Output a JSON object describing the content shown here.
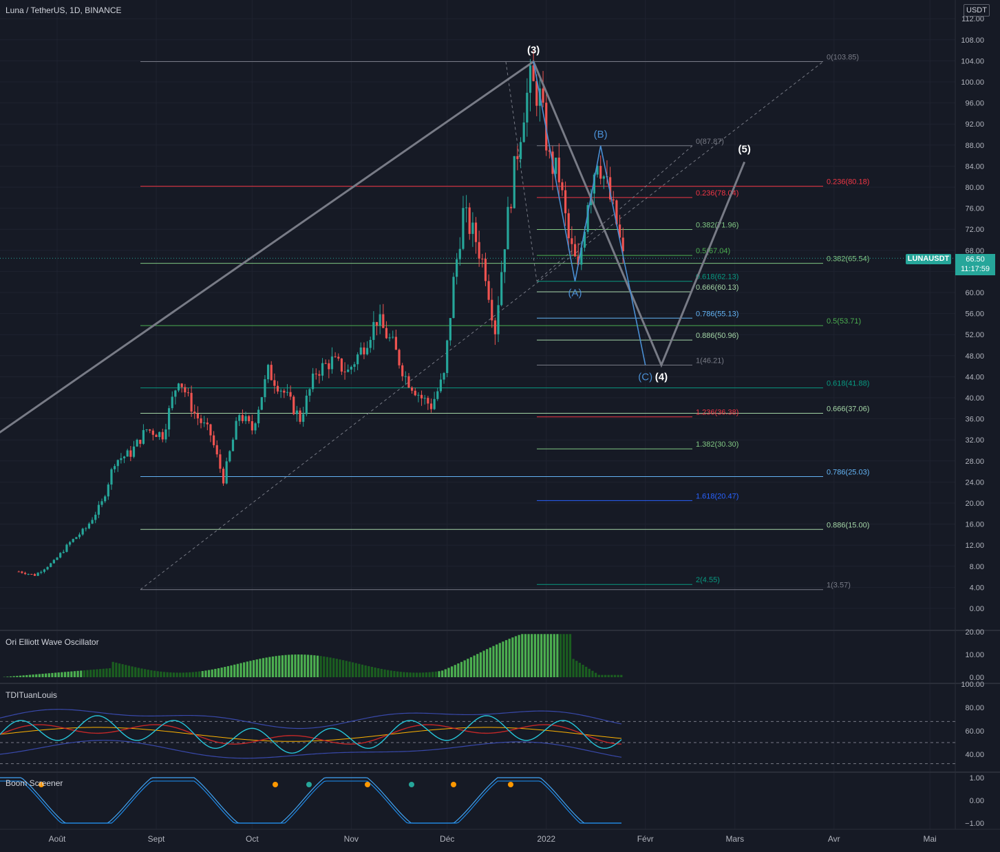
{
  "header": {
    "title": "Luna / TetherUS, 1D, BINANCE",
    "unit": "USDT"
  },
  "current_price": {
    "symbol": "LUNAUSDT",
    "price": "66.50",
    "countdown": "11:17:59"
  },
  "colors": {
    "up": "#26a69a",
    "down": "#ef5350",
    "background": "#161a25",
    "grid": "#1f2330",
    "wave": "#787b86",
    "abc": "#4a8fd4"
  },
  "chart_data": {
    "type": "line",
    "title": "Luna / TetherUS, 1D, BINANCE",
    "ylim": [
      -2,
      114
    ],
    "y_ticks": [
      "0.00",
      "4.00",
      "8.00",
      "12.00",
      "16.00",
      "20.00",
      "24.00",
      "28.00",
      "32.00",
      "36.00",
      "40.00",
      "44.00",
      "48.00",
      "52.00",
      "56.00",
      "60.00",
      "64.00",
      "68.00",
      "72.00",
      "76.00",
      "80.00",
      "84.00",
      "88.00",
      "92.00",
      "96.00",
      "100.00",
      "104.00",
      "108.00",
      "112.00"
    ],
    "x_ticks": [
      "Août",
      "Sept",
      "Oct",
      "Nov",
      "Déc",
      "2022",
      "Févr",
      "Mars",
      "Avr",
      "Mai"
    ],
    "price_series": {
      "name": "LUNAUSDT",
      "x": [
        "2021-07-20",
        "2021-07-25",
        "2021-07-31",
        "2021-08-05",
        "2021-08-10",
        "2021-08-15",
        "2021-08-19",
        "2021-08-24",
        "2021-08-29",
        "2021-09-03",
        "2021-09-08",
        "2021-09-13",
        "2021-09-18",
        "2021-09-22",
        "2021-09-27",
        "2021-10-01",
        "2021-10-06",
        "2021-10-11",
        "2021-10-16",
        "2021-10-21",
        "2021-10-26",
        "2021-10-31",
        "2021-11-05",
        "2021-11-09",
        "2021-11-14",
        "2021-11-18",
        "2021-11-23",
        "2021-11-26",
        "2021-11-30",
        "2021-12-03",
        "2021-12-06",
        "2021-12-10",
        "2021-12-13",
        "2021-12-16",
        "2021-12-19",
        "2021-12-22",
        "2021-12-25",
        "2021-12-27",
        "2021-12-30",
        "2022-01-02",
        "2022-01-05",
        "2022-01-08",
        "2022-01-11",
        "2022-01-14",
        "2022-01-17",
        "2022-01-20",
        "2022-01-23",
        "2022-01-25"
      ],
      "values": [
        7.0,
        6.3,
        8.9,
        12.5,
        15.2,
        20.0,
        28.0,
        29.5,
        34.0,
        33.0,
        44.0,
        37.0,
        33.0,
        24.5,
        37.0,
        34.0,
        45.0,
        41.0,
        36.0,
        45.0,
        47.0,
        45.0,
        50.0,
        55.0,
        50.0,
        44.0,
        40.0,
        38.5,
        44.0,
        62.0,
        75.0,
        70.0,
        64.0,
        53.0,
        70.0,
        83.0,
        95.0,
        100.0,
        97.0,
        85.0,
        82.0,
        70.0,
        64.0,
        78.0,
        86.0,
        80.0,
        73.0,
        66.5
      ]
    },
    "elliott_labels": [
      {
        "label": "(3)",
        "x": "2021-12-28",
        "y": 103.85
      },
      {
        "label": "(4)",
        "x": "2022-02-06",
        "y": 46.21
      },
      {
        "label": "(5)",
        "x": "2022-03-04",
        "y": 84.8
      },
      {
        "label": "(A)",
        "x": "2022-01-10",
        "y": 62.13
      },
      {
        "label": "(B)",
        "x": "2022-01-18",
        "y": 87.87
      },
      {
        "label": "(C)",
        "x": "2022-02-01",
        "y": 46.21
      }
    ],
    "elliott_path": [
      [
        "2021-06-30",
        27.5
      ],
      [
        "2021-12-28",
        103.85
      ],
      [
        "2022-02-06",
        46.21
      ],
      [
        "2022-03-04",
        84.8
      ]
    ],
    "abc_path": [
      [
        "2021-12-28",
        103.85
      ],
      [
        "2022-01-10",
        62.13
      ],
      [
        "2022-01-18",
        87.87
      ],
      [
        "2022-02-01",
        46.21
      ]
    ],
    "fib_retracement": {
      "levels": [
        {
          "label": "0(103.85)",
          "value": 103.85,
          "color": "#787b86"
        },
        {
          "label": "0.236(80.18)",
          "value": 80.18,
          "color": "#f23645"
        },
        {
          "label": "0.382(65.54)",
          "value": 65.54,
          "color": "#81c784"
        },
        {
          "label": "0.5(53.71)",
          "value": 53.71,
          "color": "#4caf50"
        },
        {
          "label": "0.618(41.88)",
          "value": 41.88,
          "color": "#089981"
        },
        {
          "label": "0.666(37.06)",
          "value": 37.06,
          "color": "#a5d6a7"
        },
        {
          "label": "0.786(25.03)",
          "value": 25.03,
          "color": "#64b5f6"
        },
        {
          "label": "0.886(15.00)",
          "value": 15.0,
          "color": "#a5d6a7"
        },
        {
          "label": "1(3.57)",
          "value": 3.57,
          "color": "#787b86"
        }
      ]
    },
    "fib_extension": {
      "levels": [
        {
          "label": "0(87.87)",
          "value": 87.87,
          "color": "#787b86"
        },
        {
          "label": "0.236(78.04)",
          "value": 78.04,
          "color": "#f23645"
        },
        {
          "label": "0.382(71.96)",
          "value": 71.96,
          "color": "#81c784"
        },
        {
          "label": "0.5(67.04)",
          "value": 67.04,
          "color": "#4caf50"
        },
        {
          "label": "0.618(62.13)",
          "value": 62.13,
          "color": "#089981"
        },
        {
          "label": "0.666(60.13)",
          "value": 60.13,
          "color": "#a5d6a7"
        },
        {
          "label": "0.786(55.13)",
          "value": 55.13,
          "color": "#64b5f6"
        },
        {
          "label": "0.886(50.96)",
          "value": 50.96,
          "color": "#a5d6a7"
        },
        {
          "label": "1(46.21)",
          "value": 46.21,
          "color": "#787b86"
        },
        {
          "label": "1.236(36.38)",
          "value": 36.38,
          "color": "#f23645"
        },
        {
          "label": "1.382(30.30)",
          "value": 30.3,
          "color": "#81c784"
        },
        {
          "label": "1.618(20.47)",
          "value": 20.47,
          "color": "#2962ff"
        },
        {
          "label": "2(4.55)",
          "value": 4.55,
          "color": "#089981"
        }
      ]
    },
    "indicators": [
      {
        "name": "Ori Elliott Wave Oscillator",
        "y_ticks": [
          "0.00",
          "10.00",
          "20.00"
        ],
        "ylim": [
          0,
          20
        ]
      },
      {
        "name": "TDITuanLouis",
        "y_ticks": [
          "40.00",
          "60.00",
          "80.00",
          "100.00"
        ],
        "ylim": [
          30,
          100
        ]
      },
      {
        "name": "Boom Screener",
        "y_ticks": [
          "−1.00",
          "0.00",
          "1.00"
        ],
        "ylim": [
          -1,
          1
        ]
      }
    ]
  }
}
